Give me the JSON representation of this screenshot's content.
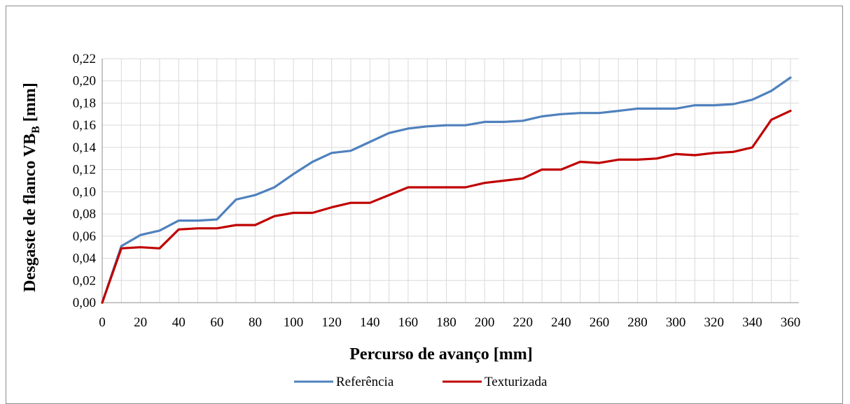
{
  "chart_data": {
    "type": "line",
    "xlabel": "Percurso de avanço [mm]",
    "ylabel": "Desgaste de flanco VB",
    "ylabel_subscript": "B",
    "ylabel_unit": " [mm]",
    "xlim": [
      0,
      360
    ],
    "ylim": [
      0,
      0.22
    ],
    "x_ticks": [
      "0",
      "20",
      "40",
      "60",
      "80",
      "100",
      "120",
      "140",
      "160",
      "180",
      "200",
      "220",
      "240",
      "260",
      "280",
      "300",
      "320",
      "340",
      "360"
    ],
    "y_ticks": [
      "0,00",
      "0,02",
      "0,04",
      "0,06",
      "0,08",
      "0,10",
      "0,12",
      "0,14",
      "0,16",
      "0,18",
      "0,20",
      "0,22"
    ],
    "grid": true,
    "legend_position": "bottom",
    "x": [
      0,
      10,
      20,
      30,
      40,
      50,
      60,
      70,
      80,
      90,
      100,
      110,
      120,
      130,
      140,
      150,
      160,
      170,
      180,
      190,
      200,
      210,
      220,
      230,
      240,
      250,
      260,
      270,
      280,
      290,
      300,
      310,
      320,
      330,
      340,
      350,
      360
    ],
    "series": [
      {
        "name": "Referência",
        "color": "#4f81bd",
        "values": [
          0.0,
          0.051,
          0.061,
          0.065,
          0.074,
          0.074,
          0.075,
          0.093,
          0.097,
          0.104,
          0.116,
          0.127,
          0.135,
          0.137,
          0.145,
          0.153,
          0.157,
          0.159,
          0.16,
          0.16,
          0.163,
          0.163,
          0.164,
          0.168,
          0.17,
          0.171,
          0.171,
          0.173,
          0.175,
          0.175,
          0.175,
          0.178,
          0.178,
          0.179,
          0.183,
          0.191,
          0.203
        ]
      },
      {
        "name": "Texturizada",
        "color": "#c00000",
        "values": [
          0.0,
          0.049,
          0.05,
          0.049,
          0.066,
          0.067,
          0.067,
          0.07,
          0.07,
          0.078,
          0.081,
          0.081,
          0.086,
          0.09,
          0.09,
          0.097,
          0.104,
          0.104,
          0.104,
          0.104,
          0.108,
          0.11,
          0.112,
          0.12,
          0.12,
          0.127,
          0.126,
          0.129,
          0.129,
          0.13,
          0.134,
          0.133,
          0.135,
          0.136,
          0.14,
          0.165,
          0.173
        ]
      }
    ]
  }
}
